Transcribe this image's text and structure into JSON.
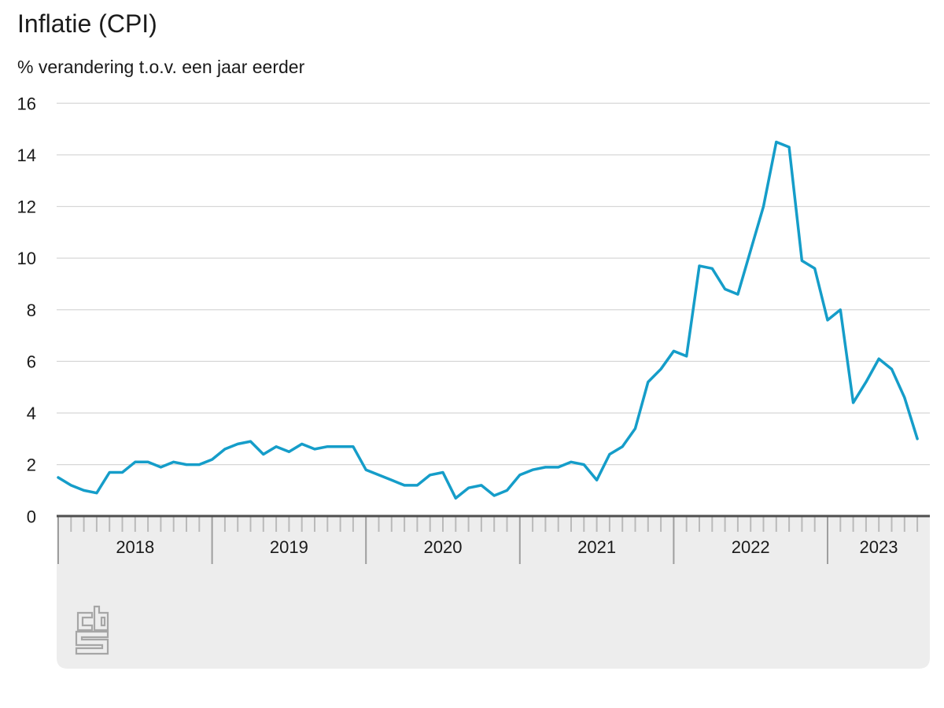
{
  "chart_data": {
    "type": "line",
    "title": "Inflatie (CPI)",
    "subtitle": "% verandering t.o.v. een jaar eerder",
    "xlabel": "",
    "ylabel": "% verandering t.o.v. een jaar eerder",
    "ylim": [
      0,
      16
    ],
    "yticks": [
      0,
      2,
      4,
      6,
      8,
      10,
      12,
      14,
      16
    ],
    "grid": "horizontal",
    "legend_position": "none",
    "frequency": "monthly",
    "x_year_labels": [
      "2018",
      "2019",
      "2020",
      "2021",
      "2022",
      "2023"
    ],
    "x": [
      "2018-01",
      "2018-02",
      "2018-03",
      "2018-04",
      "2018-05",
      "2018-06",
      "2018-07",
      "2018-08",
      "2018-09",
      "2018-10",
      "2018-11",
      "2018-12",
      "2019-01",
      "2019-02",
      "2019-03",
      "2019-04",
      "2019-05",
      "2019-06",
      "2019-07",
      "2019-08",
      "2019-09",
      "2019-10",
      "2019-11",
      "2019-12",
      "2020-01",
      "2020-02",
      "2020-03",
      "2020-04",
      "2020-05",
      "2020-06",
      "2020-07",
      "2020-08",
      "2020-09",
      "2020-10",
      "2020-11",
      "2020-12",
      "2021-01",
      "2021-02",
      "2021-03",
      "2021-04",
      "2021-05",
      "2021-06",
      "2021-07",
      "2021-08",
      "2021-09",
      "2021-10",
      "2021-11",
      "2021-12",
      "2022-01",
      "2022-02",
      "2022-03",
      "2022-04",
      "2022-05",
      "2022-06",
      "2022-07",
      "2022-08",
      "2022-09",
      "2022-10",
      "2022-11",
      "2022-12",
      "2023-01",
      "2023-02",
      "2023-03",
      "2023-04",
      "2023-05",
      "2023-06",
      "2023-07",
      "2023-08"
    ],
    "series": [
      {
        "name": "Inflatie (CPI)",
        "color": "#159dc9",
        "values": [
          1.5,
          1.2,
          1.0,
          0.9,
          1.7,
          1.7,
          2.1,
          2.1,
          1.9,
          2.1,
          2.0,
          2.0,
          2.2,
          2.6,
          2.8,
          2.9,
          2.4,
          2.7,
          2.5,
          2.8,
          2.6,
          2.7,
          2.7,
          2.7,
          1.8,
          1.6,
          1.4,
          1.2,
          1.2,
          1.6,
          1.7,
          0.7,
          1.1,
          1.2,
          0.8,
          1.0,
          1.6,
          1.8,
          1.9,
          1.9,
          2.1,
          2.0,
          1.4,
          2.4,
          2.7,
          3.4,
          5.2,
          5.7,
          6.4,
          6.2,
          9.7,
          9.6,
          8.8,
          8.6,
          10.3,
          12.0,
          14.5,
          14.3,
          9.9,
          9.6,
          7.6,
          8.0,
          4.4,
          5.2,
          6.1,
          5.7,
          4.6,
          3.0
        ]
      }
    ]
  },
  "branding": {
    "logo_name": "cbs-logo"
  },
  "colors": {
    "line": "#159dc9",
    "grid": "#d7d7d7",
    "axis_line": "#4f4f4f",
    "band": "#ededed",
    "tick_minor": "#bababa",
    "tick_major": "#9e9e9e",
    "text": "#1a1a1a",
    "logo": "#a6a6a6"
  }
}
